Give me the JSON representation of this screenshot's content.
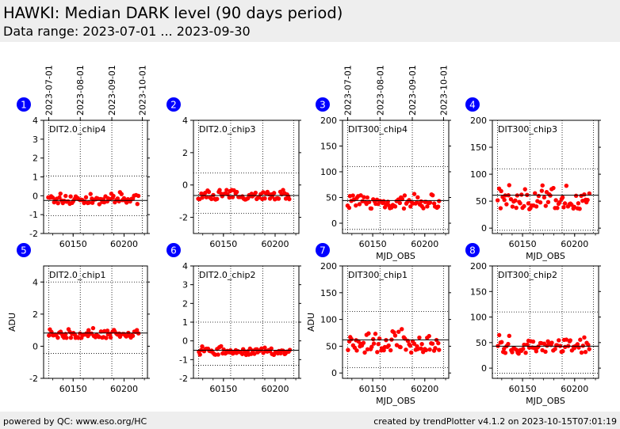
{
  "header": {
    "title": "HAWKI: Median DARK level (90 days period)",
    "subtitle": "Data range: 2023-07-01 ... 2023-09-30"
  },
  "footer": {
    "left": "powered by QC: www.eso.org/HC",
    "right": "created by trendPlotter v4.1.2 on 2023-10-15T07:01:19"
  },
  "colors": {
    "points": "#ff0000",
    "badge": "#0000ff",
    "median_line": "#000000",
    "header_bg": "#eeeeee"
  },
  "date_axis": {
    "ticks": [
      "2023-07-01",
      "2023-08-01",
      "2023-09-01",
      "2023-10-01"
    ],
    "tick_mjd": [
      60126,
      60157,
      60188,
      60218
    ]
  },
  "chart_data": [
    {
      "type": "scatter",
      "panel": "1",
      "label": "DIT2.0_chip4",
      "xlim": [
        60121,
        60223
      ],
      "ylim": [
        -2,
        4
      ],
      "yticks": [
        -2,
        -1,
        0,
        1,
        2,
        3,
        4
      ],
      "xticks": [
        60150,
        60200
      ],
      "xlabel": "",
      "ylabel": "",
      "median": -0.25,
      "limits": [
        1.05,
        -1.05
      ],
      "ymin": -0.45,
      "ymax": 0.2
    },
    {
      "type": "scatter",
      "panel": "2",
      "label": "DIT2.0_chip3",
      "xlim": [
        60121,
        60223
      ],
      "ylim": [
        -3,
        4
      ],
      "yticks": [
        -2,
        0,
        2,
        4
      ],
      "xticks": [
        60150,
        60200
      ],
      "xlabel": "",
      "ylabel": "",
      "median": -0.65,
      "limits": [
        0.75,
        -1.75
      ],
      "ymin": -0.9,
      "ymax": -0.2
    },
    {
      "type": "scatter",
      "panel": "3",
      "label": "DIT300_chip4",
      "xlim": [
        60121,
        60223
      ],
      "ylim": [
        -20,
        200
      ],
      "yticks": [
        0,
        50,
        100,
        150,
        200
      ],
      "xticks": [
        60150,
        60200
      ],
      "xlabel": "MJD_OBS",
      "ylabel": "",
      "median": 44,
      "limits": [
        110,
        -12
      ],
      "ymin": 28,
      "ymax": 60
    },
    {
      "type": "scatter",
      "panel": "4",
      "label": "DIT300_chip3",
      "xlim": [
        60121,
        60223
      ],
      "ylim": [
        -10,
        200
      ],
      "yticks": [
        0,
        50,
        100,
        150,
        200
      ],
      "xticks": [
        60150,
        60200
      ],
      "xlabel": "MJD_OBS",
      "ylabel": "",
      "median": 61,
      "limits": [
        110,
        -4
      ],
      "ymin": 35,
      "ymax": 83
    },
    {
      "type": "scatter",
      "panel": "5",
      "label": "DIT2.0_chip1",
      "xlim": [
        60121,
        60223
      ],
      "ylim": [
        -2,
        5
      ],
      "yticks": [
        -2,
        0,
        2,
        4
      ],
      "xticks": [
        60150,
        60200
      ],
      "xlabel": "",
      "ylabel": "ADU",
      "median": 0.82,
      "limits": [
        4.0,
        -0.45
      ],
      "ymin": 0.5,
      "ymax": 1.2
    },
    {
      "type": "scatter",
      "panel": "6",
      "label": "DIT2.0_chip2",
      "xlim": [
        60121,
        60223
      ],
      "ylim": [
        -2,
        4
      ],
      "yticks": [
        -2,
        -1,
        0,
        1,
        2,
        3,
        4
      ],
      "xticks": [
        60150,
        60200
      ],
      "xlabel": "",
      "ylabel": "",
      "median": -0.5,
      "limits": [
        1.0,
        -1.3
      ],
      "ymin": -0.75,
      "ymax": -0.25
    },
    {
      "type": "scatter",
      "panel": "7",
      "label": "DIT300_chip1",
      "xlim": [
        60121,
        60223
      ],
      "ylim": [
        -10,
        200
      ],
      "yticks": [
        0,
        50,
        100,
        150,
        200
      ],
      "xticks": [
        60150,
        60200
      ],
      "xlabel": "MJD_OBS",
      "ylabel": "ADU",
      "median": 62,
      "limits": [
        115,
        10
      ],
      "ymin": 38,
      "ymax": 87
    },
    {
      "type": "scatter",
      "panel": "8",
      "label": "DIT300_chip2",
      "xlim": [
        60121,
        60223
      ],
      "ylim": [
        -20,
        200
      ],
      "yticks": [
        0,
        50,
        100,
        150,
        200
      ],
      "xticks": [
        60150,
        60200
      ],
      "xlabel": "MJD_OBS",
      "ylabel": "",
      "median": 43,
      "limits": [
        110,
        -10
      ],
      "ymin": 28,
      "ymax": 67
    }
  ]
}
